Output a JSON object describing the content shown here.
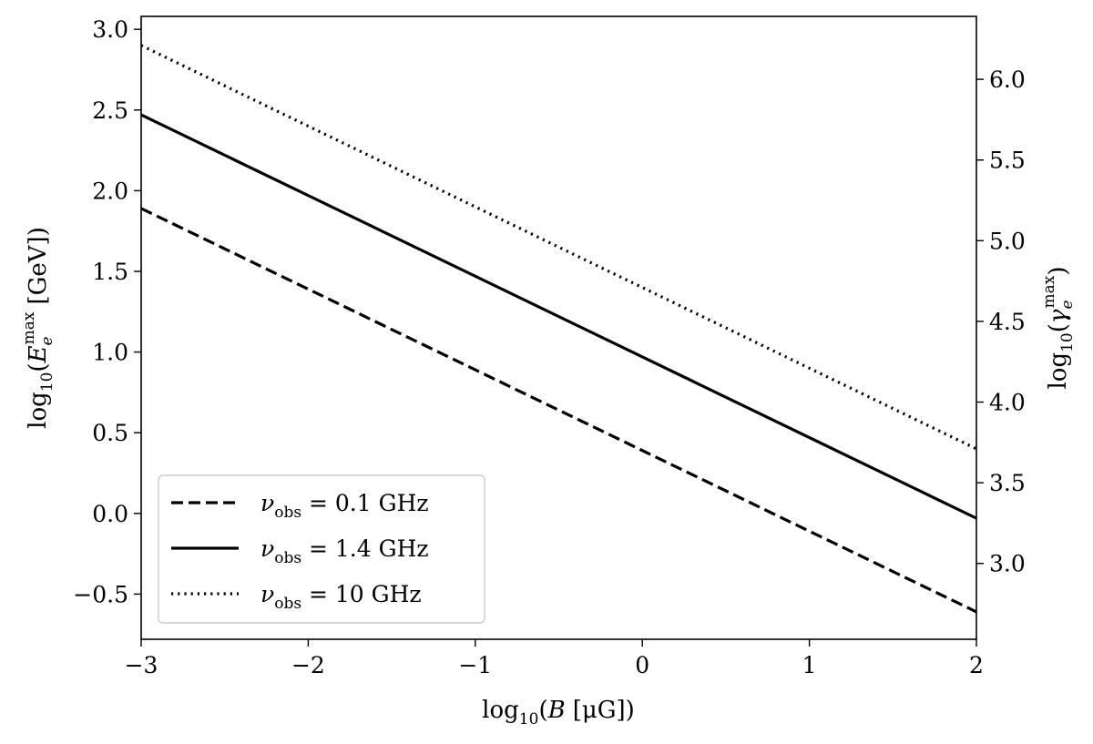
{
  "chart_data": {
    "type": "line",
    "xlabel": {
      "pre": "log",
      "sub": "10",
      "open": "(",
      "var": "B",
      "unit": "[μG])"
    },
    "ylabel_left": {
      "pre": "log",
      "sub": "10",
      "open": "(",
      "var": "E",
      "varsub": "e",
      "varsup": "max",
      "unit": "[GeV])"
    },
    "ylabel_right": {
      "pre": "log",
      "sub": "10",
      "open": "(",
      "var": "γ",
      "varsub": "e",
      "varsup": "max",
      "close": ")"
    },
    "xlim": [
      -3,
      2
    ],
    "ylim_left": [
      -0.78,
      3.08
    ],
    "ylim_right": [
      2.53,
      6.39
    ],
    "x_ticks": [
      -3,
      -2,
      -1,
      0,
      1,
      2
    ],
    "x_tick_labels": [
      "−3",
      "−2",
      "−1",
      "0",
      "1",
      "2"
    ],
    "y_left_ticks": [
      -0.5,
      0.0,
      0.5,
      1.0,
      1.5,
      2.0,
      2.5,
      3.0
    ],
    "y_left_tick_labels": [
      "−0.5",
      "0.0",
      "0.5",
      "1.0",
      "1.5",
      "2.0",
      "2.5",
      "3.0"
    ],
    "y_right_ticks": [
      3.0,
      3.5,
      4.0,
      4.5,
      5.0,
      5.5,
      6.0
    ],
    "y_right_tick_labels": [
      "3.0",
      "3.5",
      "4.0",
      "4.5",
      "5.0",
      "5.5",
      "6.0"
    ],
    "grid": false,
    "legend_position": "lower-left",
    "series": [
      {
        "name": "ν_obs = 0.1 GHz",
        "legend_sym": "ν",
        "legend_sub": "obs",
        "legend_rest": " = 0.1 GHz",
        "style": "dashed",
        "x": [
          -3,
          2
        ],
        "y": [
          1.89,
          -0.61
        ]
      },
      {
        "name": "ν_obs = 1.4 GHz",
        "legend_sym": "ν",
        "legend_sub": "obs",
        "legend_rest": " = 1.4 GHz",
        "style": "solid",
        "x": [
          -3,
          2
        ],
        "y": [
          2.47,
          -0.03
        ]
      },
      {
        "name": "ν_obs = 10 GHz",
        "legend_sym": "ν",
        "legend_sub": "obs",
        "legend_rest": " = 10 GHz",
        "style": "dotted",
        "x": [
          -3,
          2
        ],
        "y": [
          2.9,
          0.4
        ]
      }
    ],
    "colors": {
      "line": "#000000",
      "legend_border": "#cccccc"
    }
  }
}
